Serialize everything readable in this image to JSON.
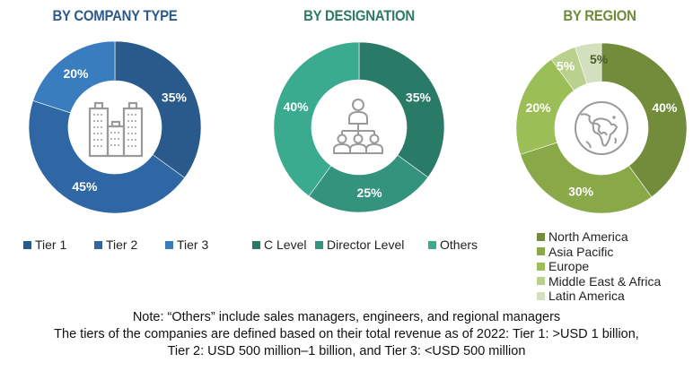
{
  "chart_data": [
    {
      "type": "pie",
      "title": "BY COMPANY TYPE",
      "title_color": "#2c5a8a",
      "categories": [
        "Tier 1",
        "Tier 2",
        "Tier 3"
      ],
      "values": [
        35,
        45,
        20
      ],
      "labels": [
        "35%",
        "45%",
        "20%"
      ],
      "colors": [
        "#2a5a8c",
        "#2e67a3",
        "#3a7dbf"
      ],
      "label_colors": [
        "#ffffff",
        "#ffffff",
        "#ffffff"
      ],
      "center_icon": "buildings-icon",
      "legend_placement": "bottom"
    },
    {
      "type": "pie",
      "title": "BY DESIGNATION",
      "title_color": "#2e7a66",
      "categories": [
        "C Level",
        "Director Level",
        "Others"
      ],
      "values": [
        35,
        25,
        40
      ],
      "labels": [
        "35%",
        "25%",
        "40%"
      ],
      "colors": [
        "#2a7a68",
        "#33937d",
        "#3bab8f"
      ],
      "label_colors": [
        "#ffffff",
        "#ffffff",
        "#ffffff"
      ],
      "center_icon": "org-hierarchy-icon",
      "legend_placement": "bottom"
    },
    {
      "type": "pie",
      "title": "BY REGION",
      "title_color": "#6f8b3a",
      "categories": [
        "North America",
        "Asia Pacific",
        "Europe",
        "Middle East & Africa",
        "Latin America"
      ],
      "values": [
        40,
        30,
        20,
        5,
        5
      ],
      "labels": [
        "40%",
        "30%",
        "20%",
        "5%",
        "5%"
      ],
      "colors": [
        "#728c3c",
        "#89a848",
        "#9cbe56",
        "#b9d18c",
        "#d3e0bd"
      ],
      "label_colors": [
        "#ffffff",
        "#ffffff",
        "#ffffff",
        "#ffffff",
        "#4a5e2a"
      ],
      "center_icon": "globe-icon",
      "legend_placement": "bottom-right"
    }
  ],
  "notes": [
    "Note: “Others” include sales managers, engineers, and regional managers",
    "The tiers of the companies are defined based on their total revenue as of 2022: Tier 1: >USD 1 billion,",
    "Tier 2: USD 500 million–1 billion, and Tier 3: <USD 500 million"
  ]
}
